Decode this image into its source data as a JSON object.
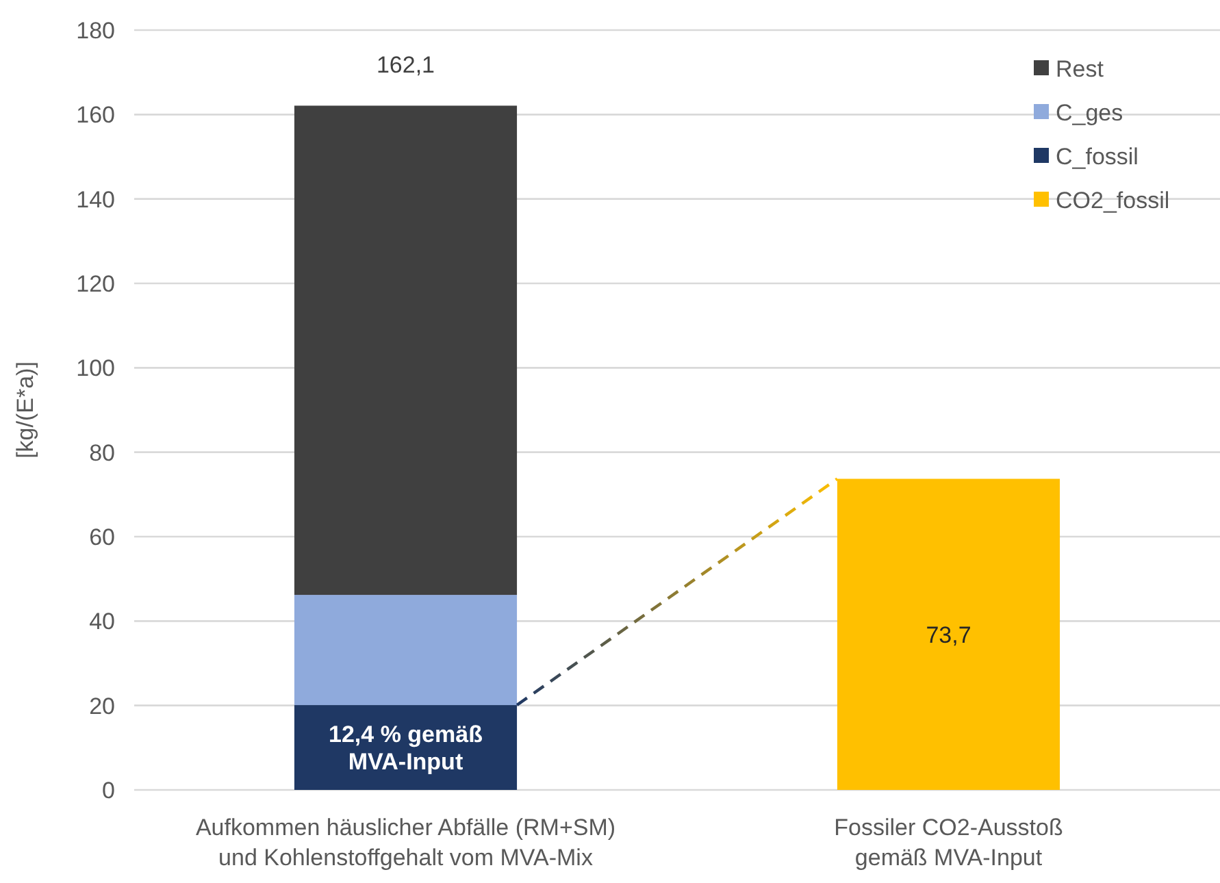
{
  "chart_data": {
    "type": "bar",
    "stacked": true,
    "ylabel": "[kg/(E*a)]",
    "categories": [
      "Aufkommen häuslicher Abfälle (RM+SM)\nund Kohlenstoffgehalt vom MVA-Mix",
      "Fossiler CO2-Ausstoß\ngemäß MVA-Input"
    ],
    "series": [
      {
        "name": "CO2_fossil",
        "color": "#ffc000",
        "values": [
          null,
          73.7
        ],
        "value_labels": [
          null,
          "73,7"
        ]
      },
      {
        "name": "C_fossil",
        "color": "#1f3864",
        "values": [
          20.1,
          null
        ]
      },
      {
        "name": "C_ges",
        "color": "#8faadc",
        "values": [
          26.1,
          null
        ]
      },
      {
        "name": "Rest",
        "color": "#404040",
        "values": [
          115.9,
          null
        ]
      }
    ],
    "totals": [
      "162,1",
      null
    ],
    "annotations": [
      "12,4 % gemäß MVA-Input"
    ],
    "ylim": [
      0,
      180
    ],
    "yticks": [
      0,
      20,
      40,
      60,
      80,
      100,
      120,
      140,
      160,
      180
    ],
    "grid": "y",
    "legend": "top right"
  }
}
